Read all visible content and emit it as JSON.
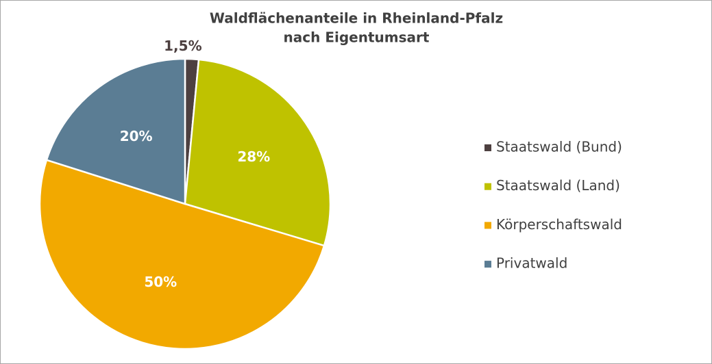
{
  "chart_data": {
    "type": "pie",
    "title": [
      "Waldflächenanteile in Rheinland-Pfalz",
      "nach Eigentumsart"
    ],
    "categories": [
      "Staatswald (Bund)",
      "Staatswald (Land)",
      "Körperschaftswald",
      "Privatwald"
    ],
    "values": [
      1.5,
      28,
      50,
      20
    ],
    "value_labels": [
      "1,5%",
      "28%",
      "50%",
      "20%"
    ],
    "colors": [
      "#4d4040",
      "#bfc200",
      "#f2a900",
      "#5b7d94"
    ],
    "legend": "right"
  }
}
